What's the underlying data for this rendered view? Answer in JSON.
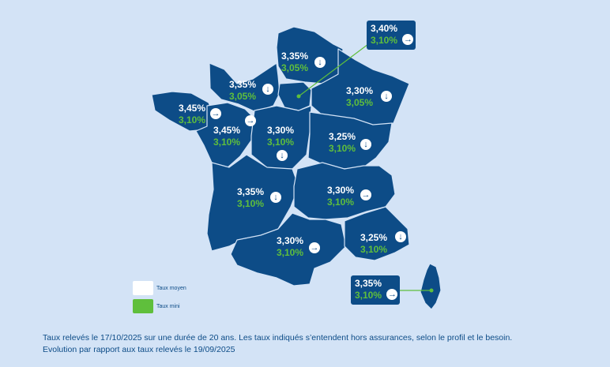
{
  "regions": [
    {
      "id": "hauts-de-france",
      "taux_moyen": "3,35%",
      "taux_mini": "3,05%",
      "trend": "down"
    },
    {
      "id": "ile-de-france",
      "taux_moyen": "3,40%",
      "taux_mini": "3,10%",
      "trend": "stable"
    },
    {
      "id": "normandie",
      "taux_moyen": "3,35%",
      "taux_mini": "3,05%",
      "trend": "down"
    },
    {
      "id": "grand-est",
      "taux_moyen": "3,30%",
      "taux_mini": "3,05%",
      "trend": "down"
    },
    {
      "id": "bretagne",
      "taux_moyen": "3,45%",
      "taux_mini": "3,10%",
      "trend": "stable"
    },
    {
      "id": "pays-de-la-loire",
      "taux_moyen": "3,45%",
      "taux_mini": "3,10%",
      "trend": "stable"
    },
    {
      "id": "centre-val-de-loire",
      "taux_moyen": "3,30%",
      "taux_mini": "3,10%",
      "trend": "down"
    },
    {
      "id": "bourgogne-franche-comte",
      "taux_moyen": "3,25%",
      "taux_mini": "3,10%",
      "trend": "down"
    },
    {
      "id": "nouvelle-aquitaine",
      "taux_moyen": "3,35%",
      "taux_mini": "3,10%",
      "trend": "down"
    },
    {
      "id": "auvergne-rhone-alpes",
      "taux_moyen": "3,30%",
      "taux_mini": "3,10%",
      "trend": "stable"
    },
    {
      "id": "occitanie",
      "taux_moyen": "3,30%",
      "taux_mini": "3,10%",
      "trend": "stable"
    },
    {
      "id": "provence-alpes-cote-dazur",
      "taux_moyen": "3,25%",
      "taux_mini": "3,10%",
      "trend": "down"
    },
    {
      "id": "corse",
      "taux_moyen": "3,35%",
      "taux_mini": "3,10%",
      "trend": "stable"
    }
  ],
  "icons": {
    "down": "arrow-down-icon",
    "stable": "arrow-right-icon"
  },
  "legend": {
    "avg_label": "Taux moyen",
    "min_label": "Taux mini"
  },
  "colors": {
    "background": "#d3e3f6",
    "map_fill": "#0d4c87",
    "taux_moyen": "#ffffff",
    "taux_mini": "#5fbf3c"
  },
  "footnote": {
    "line1": "Taux relevés le 17/10/2025 sur une durée de 20 ans. Les taux indiqués s’entendent hors assurances, selon le profil et le besoin.",
    "line2": "Evolution par rapport aux taux relevés le 19/09/2025"
  }
}
